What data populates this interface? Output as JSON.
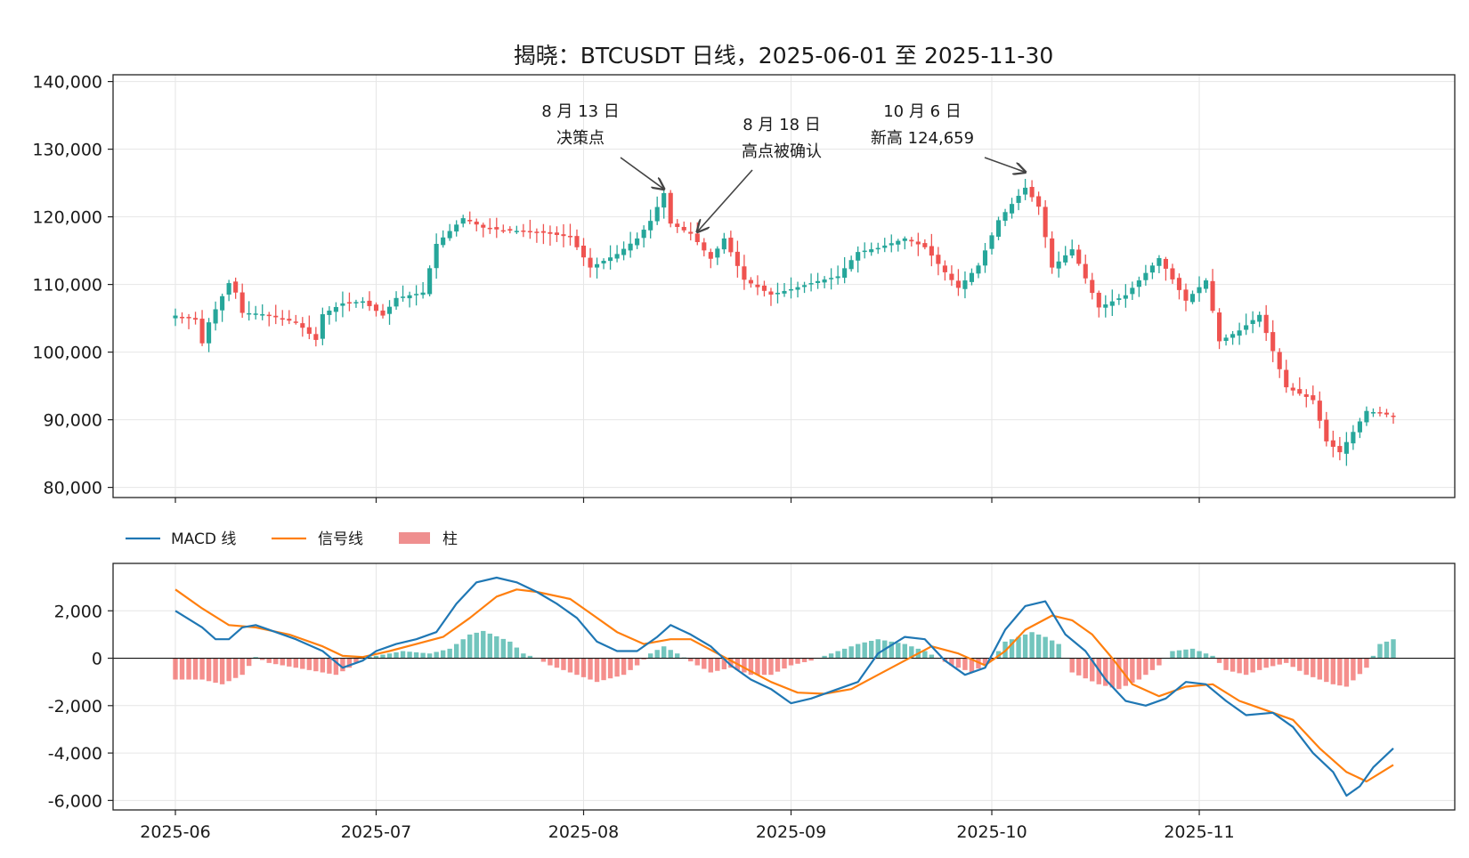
{
  "chart_data": [
    {
      "type": "candlestick",
      "title": "揭晓：BTCUSDT 日线，2025-06-01 至 2025-11-30",
      "x_range": [
        "2025-06-01",
        "2025-11-30"
      ],
      "ylim": [
        78500,
        141000
      ],
      "y_ticks": [
        80000,
        90000,
        100000,
        110000,
        120000,
        130000,
        140000
      ],
      "y_tick_labels": [
        "80,000",
        "90,000",
        "100,000",
        "110,000",
        "120,000",
        "130,000",
        "140,000"
      ],
      "grid": true,
      "colors": {
        "up": "#26a69a",
        "down": "#ef5350"
      },
      "close_points": [
        [
          "2025-06-01",
          105400
        ],
        [
          "2025-06-04",
          104800
        ],
        [
          "2025-06-05",
          101300
        ],
        [
          "2025-06-06",
          104400
        ],
        [
          "2025-06-09",
          110200
        ],
        [
          "2025-06-10",
          108800
        ],
        [
          "2025-06-11",
          105800
        ],
        [
          "2025-06-13",
          105700
        ],
        [
          "2025-06-15",
          105500
        ],
        [
          "2025-06-17",
          104800
        ],
        [
          "2025-06-19",
          104500
        ],
        [
          "2025-06-22",
          101800
        ],
        [
          "2025-06-23",
          105600
        ],
        [
          "2025-06-26",
          107200
        ],
        [
          "2025-06-29",
          107500
        ],
        [
          "2025-07-02",
          105400
        ],
        [
          "2025-07-04",
          108000
        ],
        [
          "2025-07-08",
          108800
        ],
        [
          "2025-07-10",
          116000
        ],
        [
          "2025-07-14",
          119800
        ],
        [
          "2025-07-17",
          118400
        ],
        [
          "2025-07-20",
          118000
        ],
        [
          "2025-07-25",
          117800
        ],
        [
          "2025-07-30",
          117000
        ],
        [
          "2025-08-02",
          112500
        ],
        [
          "2025-08-06",
          114500
        ],
        [
          "2025-08-09",
          116800
        ],
        [
          "2025-08-11",
          119400
        ],
        [
          "2025-08-13",
          123500
        ],
        [
          "2025-08-14",
          119000
        ],
        [
          "2025-08-17",
          117500
        ],
        [
          "2025-08-20",
          113800
        ],
        [
          "2025-08-22",
          116800
        ],
        [
          "2025-08-25",
          110700
        ],
        [
          "2025-08-29",
          108500
        ],
        [
          "2025-09-01",
          109300
        ],
        [
          "2025-09-05",
          110500
        ],
        [
          "2025-09-08",
          111200
        ],
        [
          "2025-09-11",
          114800
        ],
        [
          "2025-09-14",
          115400
        ],
        [
          "2025-09-18",
          116800
        ],
        [
          "2025-09-21",
          115500
        ],
        [
          "2025-09-24",
          111800
        ],
        [
          "2025-09-26",
          109500
        ],
        [
          "2025-09-29",
          112800
        ],
        [
          "2025-10-02",
          119500
        ],
        [
          "2025-10-06",
          124300
        ],
        [
          "2025-10-08",
          121500
        ],
        [
          "2025-10-10",
          112500
        ],
        [
          "2025-10-13",
          115200
        ],
        [
          "2025-10-17",
          106600
        ],
        [
          "2025-10-21",
          108400
        ],
        [
          "2025-10-26",
          113900
        ],
        [
          "2025-10-30",
          107600
        ],
        [
          "2025-11-02",
          110600
        ],
        [
          "2025-11-04",
          101600
        ],
        [
          "2025-11-07",
          103200
        ],
        [
          "2025-11-10",
          105500
        ],
        [
          "2025-11-14",
          94800
        ],
        [
          "2025-11-18",
          92900
        ],
        [
          "2025-11-20",
          86800
        ],
        [
          "2025-11-22",
          85200
        ],
        [
          "2025-11-24",
          88200
        ],
        [
          "2025-11-26",
          91300
        ],
        [
          "2025-11-30",
          90600
        ]
      ],
      "annotations": [
        {
          "lines": [
            "8 月 13 日",
            "决策点"
          ],
          "date": "2025-08-13",
          "price": 124100
        },
        {
          "lines": [
            "8 月 18 日",
            "高点被确认"
          ],
          "date": "2025-08-18",
          "price": 117800
        },
        {
          "lines": [
            "10 月 6 日",
            "新高 124,659"
          ],
          "date": "2025-10-06",
          "price": 126600
        }
      ]
    },
    {
      "type": "macd",
      "ylim": [
        -6400,
        4000
      ],
      "y_ticks": [
        -6000,
        -4000,
        -2000,
        0,
        2000
      ],
      "y_tick_labels": [
        "-6,000",
        "-4,000",
        "-2,000",
        "0",
        "2,000"
      ],
      "x_ticks": [
        "2025-06-01",
        "2025-07-01",
        "2025-08-01",
        "2025-09-01",
        "2025-10-01",
        "2025-11-01"
      ],
      "x_tick_labels": [
        "2025-06",
        "2025-07",
        "2025-08",
        "2025-09",
        "2025-10",
        "2025-11"
      ],
      "grid": true,
      "legend_placement": "top-left",
      "legend": {
        "macd_label": "MACD 线",
        "signal_label": "信号线",
        "hist_label": "柱"
      },
      "colors": {
        "macd": "#1f77b4",
        "signal": "#ff7f0e",
        "hist_pos": "#26a69a",
        "hist_neg": "#ef5350"
      },
      "macd_points": [
        [
          "2025-06-01",
          2000
        ],
        [
          "2025-06-05",
          1300
        ],
        [
          "2025-06-07",
          800
        ],
        [
          "2025-06-09",
          800
        ],
        [
          "2025-06-11",
          1300
        ],
        [
          "2025-06-13",
          1400
        ],
        [
          "2025-06-16",
          1100
        ],
        [
          "2025-06-19",
          800
        ],
        [
          "2025-06-23",
          300
        ],
        [
          "2025-06-26",
          -400
        ],
        [
          "2025-06-29",
          -100
        ],
        [
          "2025-07-01",
          300
        ],
        [
          "2025-07-04",
          600
        ],
        [
          "2025-07-07",
          800
        ],
        [
          "2025-07-10",
          1100
        ],
        [
          "2025-07-13",
          2300
        ],
        [
          "2025-07-16",
          3200
        ],
        [
          "2025-07-19",
          3400
        ],
        [
          "2025-07-22",
          3200
        ],
        [
          "2025-07-25",
          2800
        ],
        [
          "2025-07-28",
          2300
        ],
        [
          "2025-07-31",
          1700
        ],
        [
          "2025-08-03",
          700
        ],
        [
          "2025-08-06",
          300
        ],
        [
          "2025-08-09",
          300
        ],
        [
          "2025-08-12",
          900
        ],
        [
          "2025-08-14",
          1400
        ],
        [
          "2025-08-17",
          1000
        ],
        [
          "2025-08-20",
          500
        ],
        [
          "2025-08-23",
          -300
        ],
        [
          "2025-08-26",
          -900
        ],
        [
          "2025-08-29",
          -1300
        ],
        [
          "2025-09-01",
          -1900
        ],
        [
          "2025-09-04",
          -1700
        ],
        [
          "2025-09-07",
          -1400
        ],
        [
          "2025-09-11",
          -1000
        ],
        [
          "2025-09-14",
          200
        ],
        [
          "2025-09-18",
          900
        ],
        [
          "2025-09-21",
          800
        ],
        [
          "2025-09-24",
          -100
        ],
        [
          "2025-09-27",
          -700
        ],
        [
          "2025-09-30",
          -400
        ],
        [
          "2025-10-03",
          1200
        ],
        [
          "2025-10-06",
          2200
        ],
        [
          "2025-10-09",
          2400
        ],
        [
          "2025-10-12",
          1000
        ],
        [
          "2025-10-15",
          300
        ],
        [
          "2025-10-18",
          -900
        ],
        [
          "2025-10-21",
          -1800
        ],
        [
          "2025-10-24",
          -2000
        ],
        [
          "2025-10-27",
          -1700
        ],
        [
          "2025-10-30",
          -1000
        ],
        [
          "2025-11-02",
          -1100
        ],
        [
          "2025-11-05",
          -1800
        ],
        [
          "2025-11-08",
          -2400
        ],
        [
          "2025-11-12",
          -2300
        ],
        [
          "2025-11-15",
          -2900
        ],
        [
          "2025-11-18",
          -4000
        ],
        [
          "2025-11-21",
          -4800
        ],
        [
          "2025-11-23",
          -5800
        ],
        [
          "2025-11-25",
          -5400
        ],
        [
          "2025-11-27",
          -4600
        ],
        [
          "2025-11-30",
          -3800
        ]
      ],
      "signal_points": [
        [
          "2025-06-01",
          2900
        ],
        [
          "2025-06-05",
          2100
        ],
        [
          "2025-06-09",
          1400
        ],
        [
          "2025-06-13",
          1300
        ],
        [
          "2025-06-18",
          1000
        ],
        [
          "2025-06-23",
          500
        ],
        [
          "2025-06-26",
          100
        ],
        [
          "2025-06-29",
          50
        ],
        [
          "2025-07-03",
          300
        ],
        [
          "2025-07-07",
          600
        ],
        [
          "2025-07-11",
          900
        ],
        [
          "2025-07-15",
          1700
        ],
        [
          "2025-07-19",
          2600
        ],
        [
          "2025-07-22",
          2900
        ],
        [
          "2025-07-25",
          2800
        ],
        [
          "2025-07-30",
          2500
        ],
        [
          "2025-08-02",
          1900
        ],
        [
          "2025-08-06",
          1100
        ],
        [
          "2025-08-10",
          600
        ],
        [
          "2025-08-14",
          800
        ],
        [
          "2025-08-17",
          800
        ],
        [
          "2025-08-21",
          200
        ],
        [
          "2025-08-25",
          -400
        ],
        [
          "2025-08-29",
          -1000
        ],
        [
          "2025-09-02",
          -1450
        ],
        [
          "2025-09-06",
          -1500
        ],
        [
          "2025-09-10",
          -1300
        ],
        [
          "2025-09-14",
          -700
        ],
        [
          "2025-09-18",
          -100
        ],
        [
          "2025-09-22",
          500
        ],
        [
          "2025-09-26",
          200
        ],
        [
          "2025-09-30",
          -300
        ],
        [
          "2025-10-03",
          300
        ],
        [
          "2025-10-06",
          1200
        ],
        [
          "2025-10-10",
          1800
        ],
        [
          "2025-10-13",
          1600
        ],
        [
          "2025-10-16",
          1000
        ],
        [
          "2025-10-19",
          0
        ],
        [
          "2025-10-22",
          -1100
        ],
        [
          "2025-10-26",
          -1600
        ],
        [
          "2025-10-30",
          -1200
        ],
        [
          "2025-11-03",
          -1100
        ],
        [
          "2025-11-07",
          -1800
        ],
        [
          "2025-11-11",
          -2200
        ],
        [
          "2025-11-15",
          -2600
        ],
        [
          "2025-11-19",
          -3800
        ],
        [
          "2025-11-23",
          -4800
        ],
        [
          "2025-11-26",
          -5200
        ],
        [
          "2025-11-30",
          -4500
        ]
      ],
      "hist_points": [
        [
          "2025-06-01",
          -900
        ],
        [
          "2025-06-05",
          -900
        ],
        [
          "2025-06-08",
          -1100
        ],
        [
          "2025-06-11",
          -700
        ],
        [
          "2025-06-13",
          50
        ],
        [
          "2025-06-15",
          -200
        ],
        [
          "2025-06-19",
          -400
        ],
        [
          "2025-06-23",
          -600
        ],
        [
          "2025-06-25",
          -700
        ],
        [
          "2025-06-27",
          -400
        ],
        [
          "2025-06-29",
          50
        ],
        [
          "2025-07-01",
          100
        ],
        [
          "2025-07-05",
          300
        ],
        [
          "2025-07-09",
          200
        ],
        [
          "2025-07-12",
          400
        ],
        [
          "2025-07-15",
          1000
        ],
        [
          "2025-07-17",
          1150
        ],
        [
          "2025-07-21",
          700
        ],
        [
          "2025-07-23",
          200
        ],
        [
          "2025-07-25",
          0
        ],
        [
          "2025-07-27",
          -300
        ],
        [
          "2025-07-31",
          -700
        ],
        [
          "2025-08-03",
          -1000
        ],
        [
          "2025-08-07",
          -700
        ],
        [
          "2025-08-09",
          -300
        ],
        [
          "2025-08-11",
          200
        ],
        [
          "2025-08-13",
          500
        ],
        [
          "2025-08-15",
          200
        ],
        [
          "2025-08-18",
          -300
        ],
        [
          "2025-08-20",
          -600
        ],
        [
          "2025-08-23",
          -400
        ],
        [
          "2025-08-26",
          -700
        ],
        [
          "2025-08-29",
          -700
        ],
        [
          "2025-09-01",
          -300
        ],
        [
          "2025-09-04",
          -100
        ],
        [
          "2025-09-07",
          200
        ],
        [
          "2025-09-11",
          600
        ],
        [
          "2025-09-14",
          800
        ],
        [
          "2025-09-18",
          600
        ],
        [
          "2025-09-21",
          300
        ],
        [
          "2025-09-25",
          -300
        ],
        [
          "2025-09-28",
          -600
        ],
        [
          "2025-10-01",
          -100
        ],
        [
          "2025-10-03",
          700
        ],
        [
          "2025-10-07",
          1100
        ],
        [
          "2025-10-09",
          900
        ],
        [
          "2025-10-11",
          600
        ],
        [
          "2025-10-13",
          -600
        ],
        [
          "2025-10-17",
          -1100
        ],
        [
          "2025-10-20",
          -1300
        ],
        [
          "2025-10-23",
          -900
        ],
        [
          "2025-10-26",
          -300
        ],
        [
          "2025-10-28",
          300
        ],
        [
          "2025-10-31",
          400
        ],
        [
          "2025-11-03",
          100
        ],
        [
          "2025-11-05",
          -500
        ],
        [
          "2025-11-08",
          -700
        ],
        [
          "2025-11-11",
          -400
        ],
        [
          "2025-11-14",
          -200
        ],
        [
          "2025-11-17",
          -700
        ],
        [
          "2025-11-21",
          -1100
        ],
        [
          "2025-11-23",
          -1200
        ],
        [
          "2025-11-26",
          -400
        ],
        [
          "2025-11-28",
          600
        ],
        [
          "2025-11-30",
          800
        ]
      ]
    }
  ]
}
